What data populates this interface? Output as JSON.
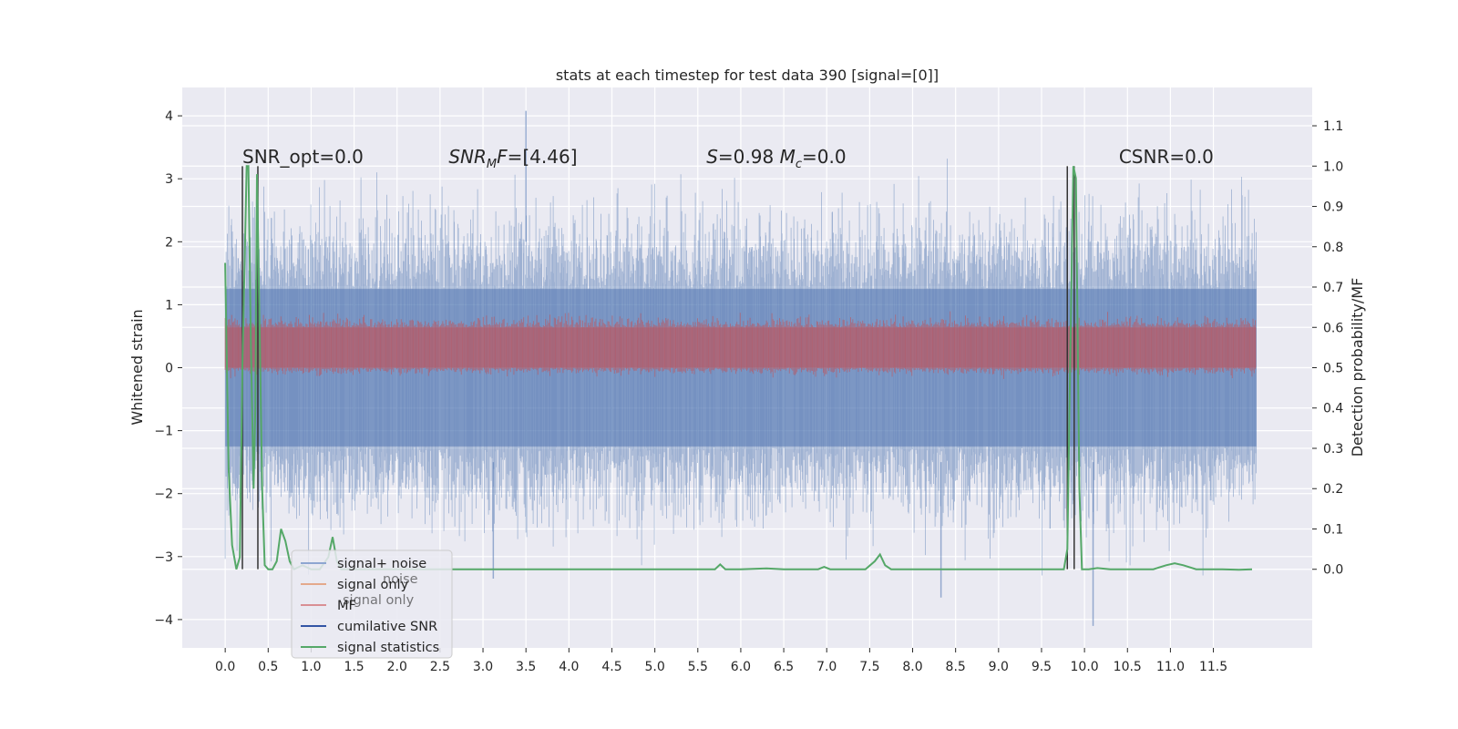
{
  "chart_data": {
    "type": "line",
    "title": "stats at each timestep for test data 390 [signal=[0]]",
    "xlabel": "",
    "ylabel": "Whitened strain",
    "y2label": "Detection probability/MF",
    "xlim": [
      -0.5,
      12.65
    ],
    "ylim": [
      -4.45,
      4.45
    ],
    "y2lim": [
      -0.195,
      1.195
    ],
    "x_ticks": [
      0.0,
      0.5,
      1.0,
      1.5,
      2.0,
      2.5,
      3.0,
      3.5,
      4.0,
      4.5,
      5.0,
      5.5,
      6.0,
      6.5,
      7.0,
      7.5,
      8.0,
      8.5,
      9.0,
      9.5,
      10.0,
      10.5,
      11.0,
      11.5
    ],
    "x_tick_labels": [
      "0.0",
      "0.5",
      "1.0",
      "1.5",
      "2.0",
      "2.5",
      "3.0",
      "3.5",
      "4.0",
      "4.5",
      "5.0",
      "5.5",
      "6.0",
      "6.5",
      "7.0",
      "7.5",
      "8.0",
      "8.5",
      "9.0",
      "9.5",
      "10.0",
      "10.5",
      "11.0",
      "11.5"
    ],
    "y_ticks": [
      -4,
      -3,
      -2,
      -1,
      0,
      1,
      2,
      3,
      4
    ],
    "y_tick_labels": [
      "−4",
      "−3",
      "−2",
      "−1",
      "0",
      "1",
      "2",
      "3",
      "4"
    ],
    "y2_ticks": [
      0.0,
      0.1,
      0.2,
      0.3,
      0.4,
      0.5,
      0.6,
      0.7,
      0.8,
      0.9,
      1.0,
      1.1
    ],
    "y2_tick_labels": [
      "0.0",
      "0.1",
      "0.2",
      "0.3",
      "0.4",
      "0.5",
      "0.6",
      "0.7",
      "0.8",
      "0.9",
      "1.0",
      "1.1"
    ],
    "annotations": [
      {
        "id": "snr-opt",
        "text": "SNR_opt=0.0",
        "x": 0.2,
        "y": 3.25
      },
      {
        "id": "snr-mf",
        "text": "SNR_MF=[4.46]",
        "x": 2.6,
        "y": 3.25
      },
      {
        "id": "s-mc",
        "text": "S=0.98   M_c=0.0",
        "x": 5.6,
        "y": 3.25
      },
      {
        "id": "csnr",
        "text": "CSNR=0.0",
        "x": 10.4,
        "y": 3.25
      }
    ],
    "noise_series": {
      "name": "signal+ noise",
      "color": "#4c72b0",
      "x_range": [
        0.0,
        12.0
      ],
      "envelope_core": [
        -1.25,
        1.25
      ],
      "envelope_typical": [
        -2.2,
        2.5
      ],
      "peak_max": 4.08,
      "peak_min": -4.1
    },
    "mf_series": {
      "name": "MF",
      "color": "#c44e52",
      "secondary_axis": true,
      "band": [
        0.5,
        0.6
      ],
      "band_peaks": [
        0.47,
        0.65
      ]
    },
    "stat_series": {
      "name": "signal statistics",
      "color": "#55a868",
      "secondary_axis": true,
      "points": [
        [
          0.0,
          0.76
        ],
        [
          0.04,
          0.25
        ],
        [
          0.08,
          0.06
        ],
        [
          0.13,
          0.0
        ],
        [
          0.17,
          0.03
        ],
        [
          0.2,
          0.5
        ],
        [
          0.25,
          1.0
        ],
        [
          0.27,
          1.0
        ],
        [
          0.3,
          0.55
        ],
        [
          0.33,
          0.2
        ],
        [
          0.35,
          0.4
        ],
        [
          0.37,
          0.98
        ],
        [
          0.4,
          0.6
        ],
        [
          0.43,
          0.2
        ],
        [
          0.46,
          0.01
        ],
        [
          0.5,
          0.0
        ],
        [
          0.55,
          0.0
        ],
        [
          0.6,
          0.02
        ],
        [
          0.65,
          0.1
        ],
        [
          0.7,
          0.07
        ],
        [
          0.75,
          0.02
        ],
        [
          0.8,
          0.0
        ],
        [
          0.9,
          0.01
        ],
        [
          1.0,
          0.0
        ],
        [
          1.1,
          0.0
        ],
        [
          1.2,
          0.03
        ],
        [
          1.25,
          0.08
        ],
        [
          1.3,
          0.02
        ],
        [
          1.35,
          0.0
        ],
        [
          1.5,
          0.0
        ],
        [
          2.0,
          0.0
        ],
        [
          2.5,
          0.0
        ],
        [
          3.0,
          0.0
        ],
        [
          3.5,
          0.0
        ],
        [
          4.0,
          0.0
        ],
        [
          4.5,
          0.0
        ],
        [
          5.0,
          0.0
        ],
        [
          5.5,
          0.0
        ],
        [
          5.7,
          0.0
        ],
        [
          5.76,
          0.012
        ],
        [
          5.82,
          0.0
        ],
        [
          6.0,
          0.0
        ],
        [
          6.3,
          0.002
        ],
        [
          6.5,
          0.0
        ],
        [
          6.9,
          0.0
        ],
        [
          6.97,
          0.006
        ],
        [
          7.04,
          0.0
        ],
        [
          7.45,
          0.0
        ],
        [
          7.56,
          0.02
        ],
        [
          7.62,
          0.037
        ],
        [
          7.68,
          0.01
        ],
        [
          7.75,
          0.0
        ],
        [
          8.0,
          0.0
        ],
        [
          9.0,
          0.0
        ],
        [
          9.6,
          0.0
        ],
        [
          9.76,
          0.0
        ],
        [
          9.8,
          0.05
        ],
        [
          9.84,
          0.6
        ],
        [
          9.87,
          1.0
        ],
        [
          9.9,
          0.97
        ],
        [
          9.94,
          0.2
        ],
        [
          9.97,
          0.0
        ],
        [
          10.05,
          0.0
        ],
        [
          10.15,
          0.003
        ],
        [
          10.3,
          0.0
        ],
        [
          10.8,
          0.0
        ],
        [
          10.95,
          0.01
        ],
        [
          11.05,
          0.015
        ],
        [
          11.15,
          0.01
        ],
        [
          11.3,
          0.0
        ],
        [
          11.6,
          0.0
        ],
        [
          11.8,
          -0.001
        ],
        [
          11.95,
          0.0
        ]
      ]
    },
    "vlines": {
      "name": "cumilative SNR",
      "color": "#333333",
      "x": [
        0.2,
        0.38,
        9.8,
        9.88
      ],
      "y_range": [
        -3.2,
        3.2
      ]
    },
    "legend": {
      "position": "lower-left",
      "entries": [
        {
          "label": "signal+ noise",
          "color": "#8ea6d1"
        },
        {
          "label": "signal only",
          "color": "#e4a98c"
        },
        {
          "label": "MF",
          "color": "#d98f94"
        },
        {
          "label": "cumilative SNR",
          "color": "#3355a5"
        },
        {
          "label": "signal statistics",
          "color": "#55a868"
        }
      ],
      "ghost_texts": [
        "noise",
        "signal only"
      ]
    }
  }
}
